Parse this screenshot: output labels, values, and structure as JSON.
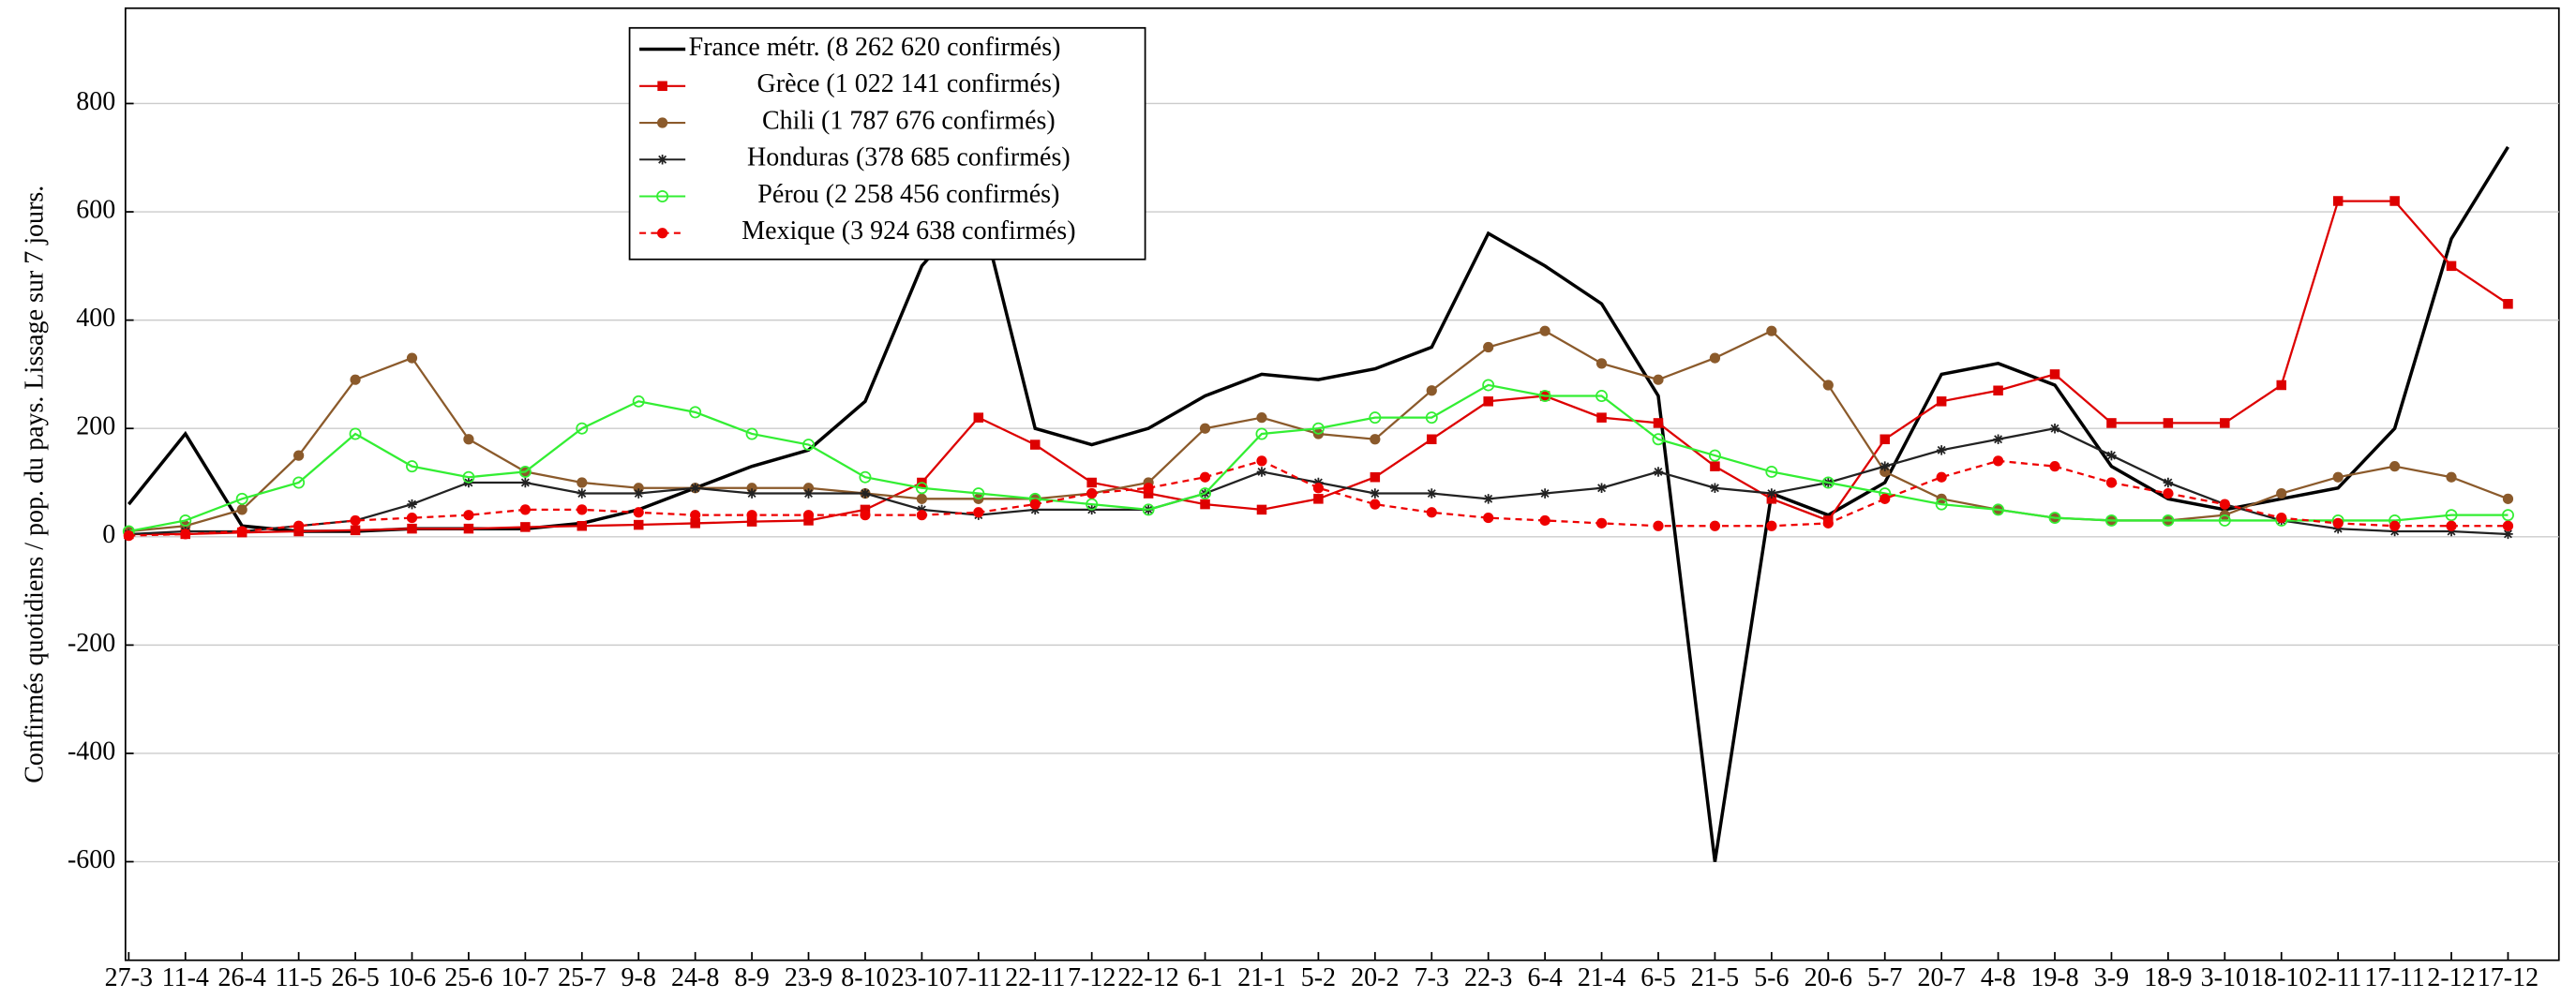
{
  "chart_data": {
    "type": "line",
    "ylabel": "Confirmés quotidiens / pop. du pays. Lissage sur 7 jours.",
    "categories": [
      "27-3",
      "11-4",
      "26-4",
      "11-5",
      "26-5",
      "10-6",
      "25-6",
      "10-7",
      "25-7",
      "9-8",
      "24-8",
      "8-9",
      "23-9",
      "8-10",
      "23-10",
      "7-11",
      "22-11",
      "7-12",
      "22-12",
      "6-1",
      "21-1",
      "5-2",
      "20-2",
      "7-3",
      "22-3",
      "6-4",
      "21-4",
      "6-5",
      "21-5",
      "5-6",
      "20-6",
      "5-7",
      "20-7",
      "4-8",
      "19-8",
      "3-9",
      "18-9",
      "3-10",
      "18-10",
      "2-11",
      "17-11",
      "2-12",
      "17-12"
    ],
    "ylim": [
      -782,
      976
    ],
    "yticks": [
      -600,
      -400,
      -200,
      0,
      200,
      400,
      600,
      800
    ],
    "grid": true,
    "legend": "top-left",
    "series": [
      {
        "name": "France métr. (8 262 620 confirmés)",
        "color": "#000000",
        "marker": "none",
        "dashed": false,
        "values": [
          60,
          190,
          20,
          10,
          10,
          15,
          15,
          15,
          25,
          50,
          90,
          130,
          160,
          250,
          500,
          620,
          200,
          170,
          200,
          260,
          300,
          290,
          310,
          350,
          560,
          500,
          430,
          260,
          -600,
          80,
          40,
          100,
          300,
          320,
          280,
          130,
          70,
          50,
          70,
          90,
          200,
          550,
          720
        ]
      },
      {
        "name": "Grèce (1 022 141 confirmés)",
        "color": "#dd0000",
        "marker": "square",
        "dashed": false,
        "values": [
          5,
          5,
          8,
          10,
          12,
          15,
          15,
          18,
          20,
          22,
          25,
          28,
          30,
          50,
          100,
          220,
          170,
          100,
          80,
          60,
          50,
          70,
          110,
          180,
          250,
          260,
          220,
          210,
          130,
          70,
          30,
          180,
          250,
          270,
          300,
          210,
          210,
          210,
          280,
          620,
          620,
          500,
          430
        ]
      },
      {
        "name": "Chili (1 787 676 confirmés)",
        "color": "#8b5a2b",
        "marker": "circle",
        "dashed": false,
        "values": [
          10,
          20,
          50,
          150,
          290,
          330,
          180,
          120,
          100,
          90,
          90,
          90,
          90,
          80,
          70,
          70,
          70,
          80,
          100,
          200,
          220,
          190,
          180,
          270,
          350,
          380,
          320,
          290,
          330,
          380,
          280,
          120,
          70,
          50,
          35,
          30,
          30,
          40,
          80,
          110,
          130,
          110,
          70
        ]
      },
      {
        "name": "Honduras (378 685 confirmés)",
        "color": "#222222",
        "marker": "star",
        "dashed": false,
        "values": [
          5,
          10,
          10,
          20,
          30,
          60,
          100,
          100,
          80,
          80,
          90,
          80,
          80,
          80,
          50,
          40,
          50,
          50,
          50,
          80,
          120,
          100,
          80,
          80,
          70,
          80,
          90,
          120,
          90,
          80,
          100,
          130,
          160,
          180,
          200,
          150,
          100,
          60,
          30,
          15,
          10,
          10,
          5
        ]
      },
      {
        "name": "Pérou (2 258 456 confirmés)",
        "color": "#33ee33",
        "marker": "ocircle",
        "dashed": false,
        "values": [
          10,
          30,
          70,
          100,
          190,
          130,
          110,
          120,
          200,
          250,
          230,
          190,
          170,
          110,
          90,
          80,
          70,
          60,
          50,
          80,
          190,
          200,
          220,
          220,
          280,
          260,
          260,
          180,
          150,
          120,
          100,
          80,
          60,
          50,
          35,
          30,
          30,
          30,
          30,
          30,
          30,
          40,
          40
        ]
      },
      {
        "name": "Mexique (3 924 638 confirmés)",
        "color": "#ee0000",
        "marker": "circle",
        "dashed": true,
        "values": [
          2,
          5,
          10,
          20,
          30,
          35,
          40,
          50,
          50,
          45,
          40,
          40,
          40,
          40,
          40,
          45,
          60,
          80,
          90,
          110,
          140,
          90,
          60,
          45,
          35,
          30,
          25,
          20,
          20,
          20,
          25,
          70,
          110,
          140,
          130,
          100,
          80,
          60,
          35,
          25,
          20,
          20,
          20
        ]
      }
    ]
  }
}
